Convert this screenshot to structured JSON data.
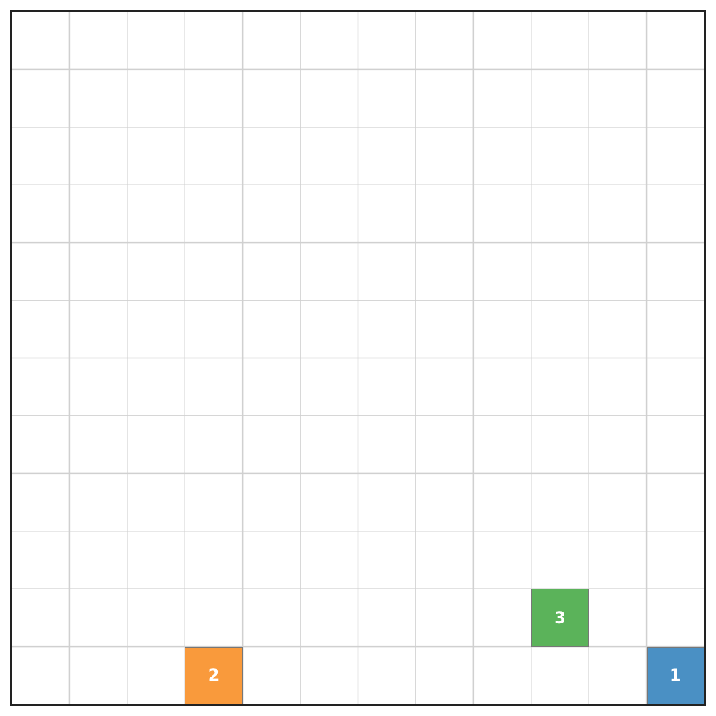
{
  "board": {
    "rows": 12,
    "cols": 12,
    "grid_color": "#d0d0d0",
    "border_color": "#222222",
    "background": "#ffffff"
  },
  "tiles": [
    {
      "label": "1",
      "row": 12,
      "col": 12,
      "color": "#4a90c4"
    },
    {
      "label": "2",
      "row": 12,
      "col": 4,
      "color": "#f99a3c"
    },
    {
      "label": "3",
      "row": 11,
      "col": 10,
      "color": "#5bb35a"
    }
  ]
}
